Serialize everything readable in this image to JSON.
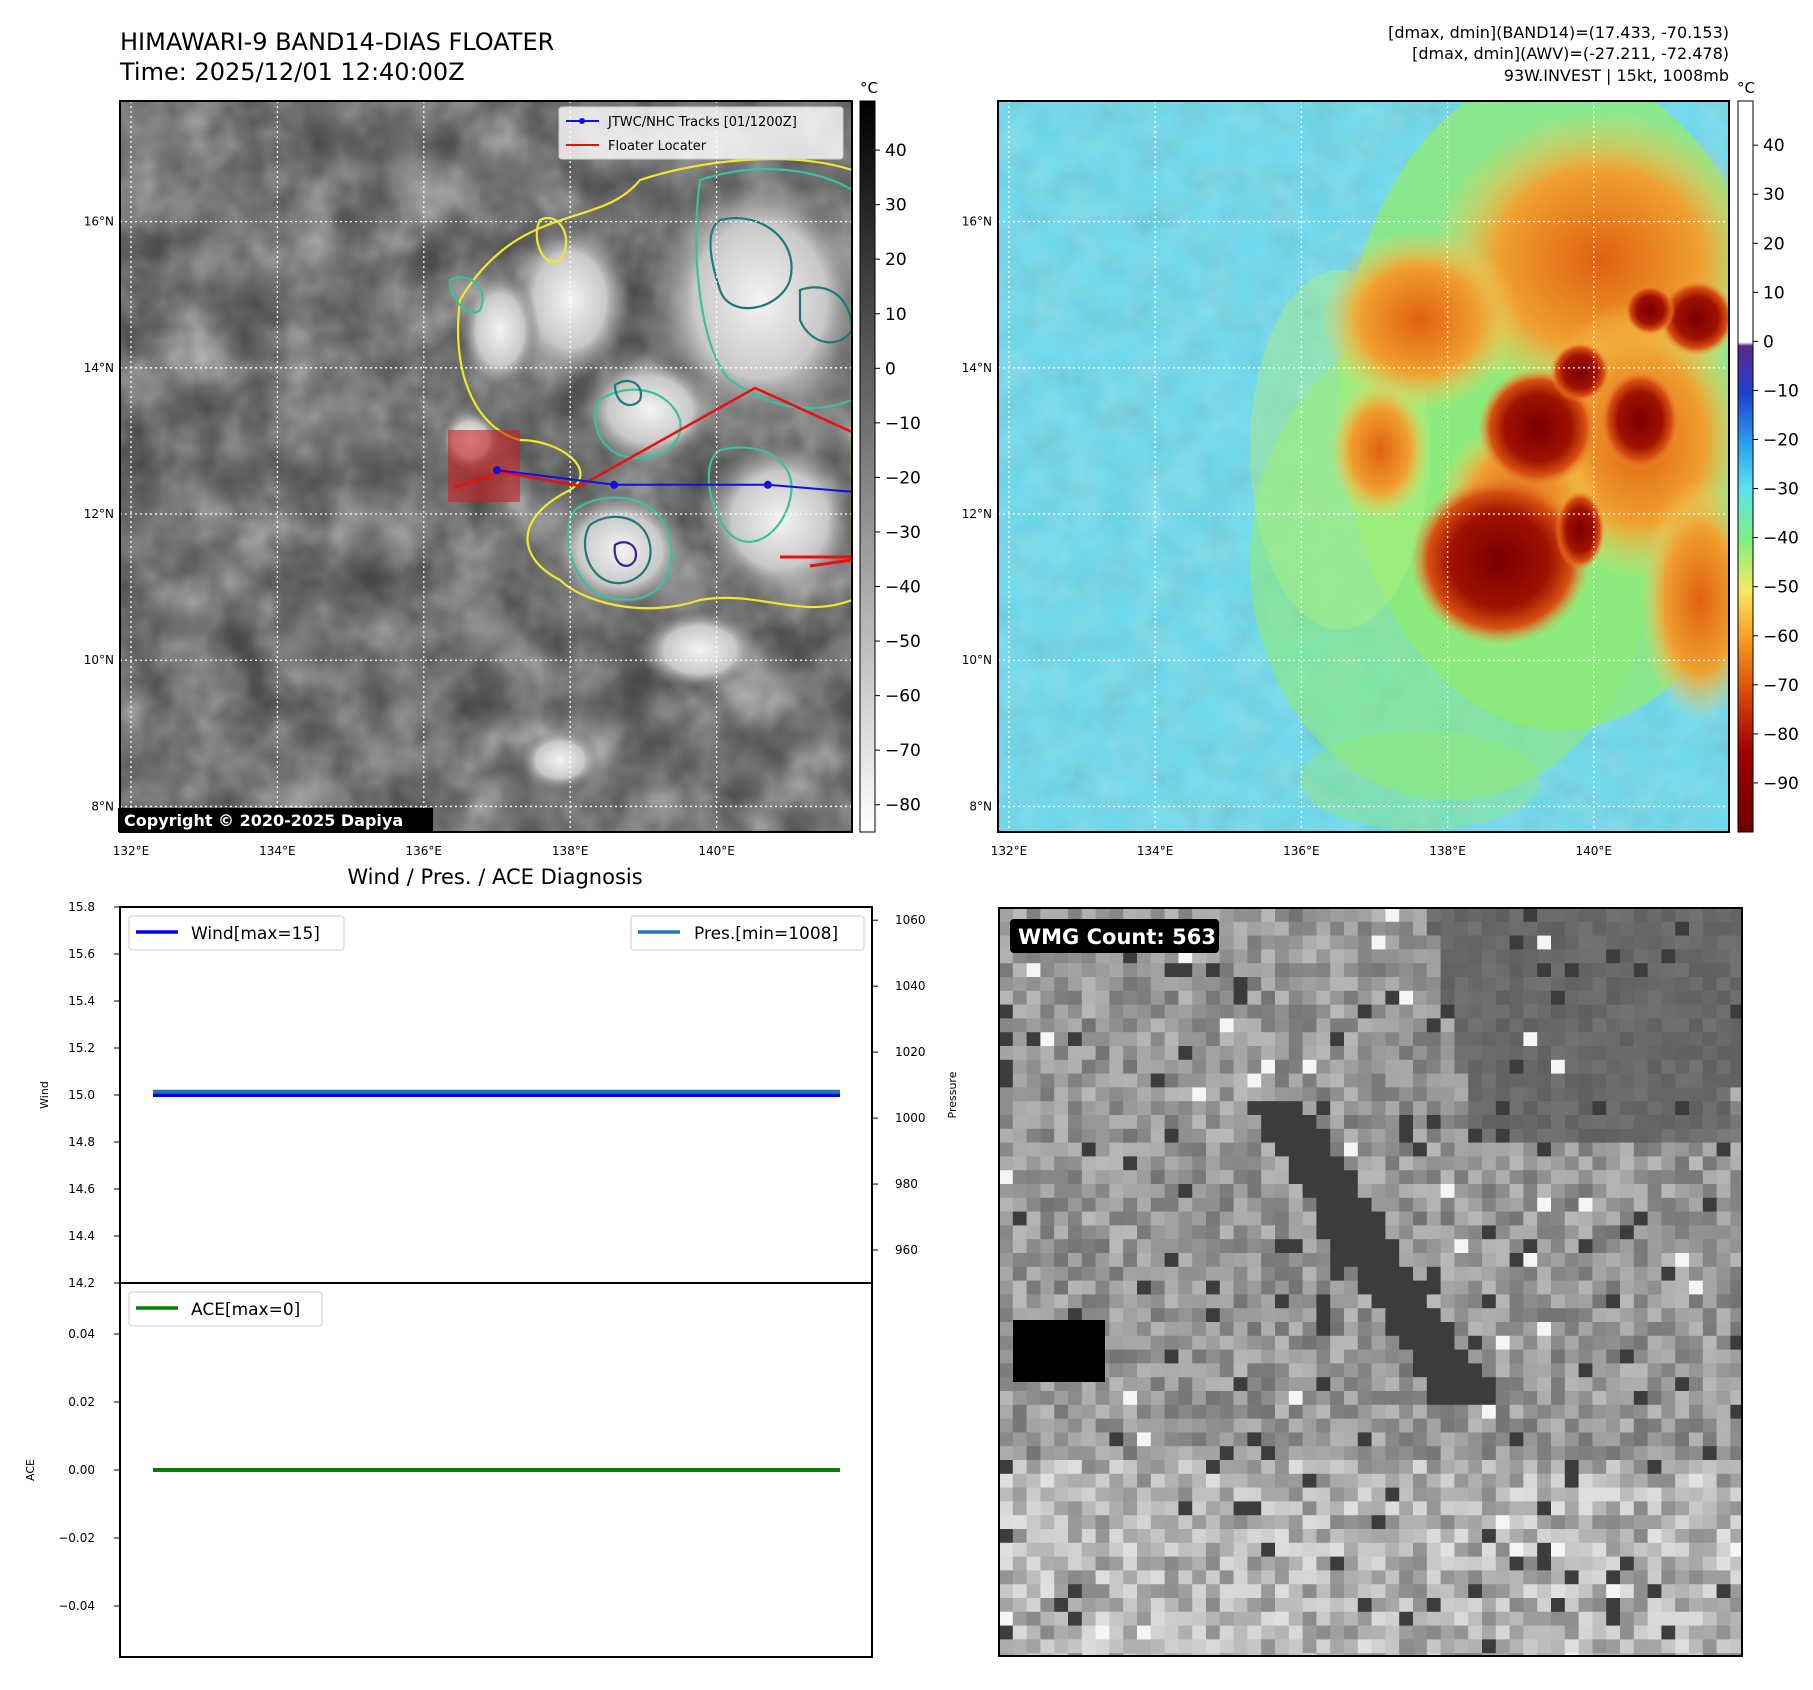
{
  "header": {
    "title_line1": "HIMAWARI-9 BAND14-DIAS FLOATER",
    "title_line2": "Time: 2025/12/01 12:40:00Z",
    "info_line1": "[dmax, dmin](BAND14)=(17.433, -70.153)",
    "info_line2": "[dmax, dmin](AWV)=(-27.211, -72.478)",
    "info_line3": "93W.INVEST | 15kt, 1008mb"
  },
  "map_axes": {
    "lon_ticks": [
      "132°E",
      "134°E",
      "136°E",
      "138°E",
      "140°E"
    ],
    "lon_values": [
      132,
      134,
      136,
      138,
      140
    ],
    "lat_ticks": [
      "8°N",
      "10°N",
      "12°N",
      "14°N",
      "16°N"
    ],
    "lat_values": [
      8,
      10,
      12,
      14,
      16
    ],
    "lon_range": [
      131.85,
      141.85
    ],
    "lat_range": [
      7.65,
      17.65
    ]
  },
  "ir_panel": {
    "legend": [
      "JTWC/NHC Tracks [01/1200Z]",
      "Floater Locater"
    ],
    "legend_colors": [
      "#1010e0",
      "#e81010"
    ],
    "copyright": "Copyright © 2020-2025 Dapiya",
    "colorbar_unit": "°C",
    "colorbar_ticks": [
      "40",
      "30",
      "20",
      "10",
      "0",
      "−10",
      "−20",
      "−30",
      "−40",
      "−50",
      "−60",
      "−70",
      "−80"
    ],
    "colorbar_values": [
      40,
      30,
      20,
      10,
      0,
      -10,
      -20,
      -30,
      -40,
      -50,
      -60,
      -70,
      -80
    ],
    "colorbar_range": [
      -85,
      49
    ],
    "track_points": [
      [
        137.0,
        12.6
      ],
      [
        138.6,
        12.4
      ],
      [
        140.7,
        12.4
      ]
    ]
  },
  "awv_panel": {
    "colorbar_unit": "°C",
    "colorbar_ticks": [
      "40",
      "30",
      "20",
      "10",
      "0",
      "−10",
      "−20",
      "−30",
      "−40",
      "−50",
      "−60",
      "−70",
      "−80",
      "−90"
    ],
    "colorbar_values": [
      40,
      30,
      20,
      10,
      0,
      -10,
      -20,
      -30,
      -40,
      -50,
      -60,
      -70,
      -80,
      -90
    ],
    "colorbar_range": [
      -100,
      49
    ]
  },
  "diag_title": "Wind / Pres. / ACE Diagnosis",
  "wmg": {
    "label": "WMG Count: 563"
  },
  "chart_data": [
    {
      "type": "line",
      "title": "Wind / Pres. / ACE Diagnosis",
      "ylabel": "Wind",
      "y2label": "Pressure",
      "ylim": [
        14.2,
        15.8
      ],
      "y2lim": [
        950,
        1064
      ],
      "yticks": [
        "15.8",
        "15.6",
        "15.4",
        "15.2",
        "15.0",
        "14.8",
        "14.6",
        "14.4",
        "14.2"
      ],
      "ytick_values": [
        15.8,
        15.6,
        15.4,
        15.2,
        15.0,
        14.8,
        14.6,
        14.4,
        14.2
      ],
      "y2ticks": [
        "1060",
        "1040",
        "1020",
        "1000",
        "980",
        "960"
      ],
      "y2tick_values": [
        1060,
        1040,
        1020,
        1000,
        980,
        960
      ],
      "series": [
        {
          "name": "Wind[max=15]",
          "color": "#0000ee",
          "axis": "left",
          "values": [
            15,
            15
          ]
        },
        {
          "name": "Pres.[min=1008]",
          "color": "#1f77b4",
          "axis": "right",
          "values": [
            1008,
            1008
          ]
        }
      ]
    },
    {
      "type": "line",
      "ylabel": "ACE",
      "ylim": [
        -0.055,
        0.055
      ],
      "yticks": [
        "0.04",
        "0.02",
        "0.00",
        "−0.02",
        "−0.04"
      ],
      "ytick_values": [
        0.04,
        0.02,
        0.0,
        -0.02,
        -0.04
      ],
      "series": [
        {
          "name": "ACE[max=0]",
          "color": "#008000",
          "values": [
            0,
            0
          ]
        }
      ]
    }
  ]
}
